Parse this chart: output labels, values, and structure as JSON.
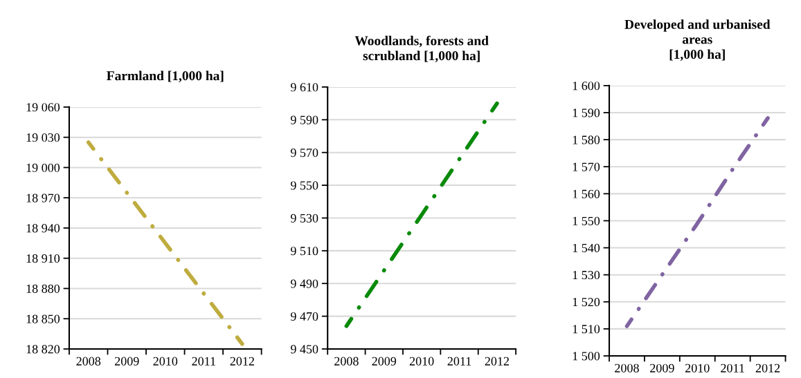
{
  "chart_data": [
    {
      "type": "line",
      "title": "Farmland [1,000 ha]",
      "categories": [
        "2008",
        "2009",
        "2010",
        "2011",
        "2012"
      ],
      "series": [
        {
          "color": "#bfac3f",
          "values": [
            19025,
            18975,
            18925,
            18875,
            18825
          ]
        }
      ],
      "ylim": [
        18820,
        19060
      ],
      "yticks": [
        {
          "value": 18820,
          "label": "18 820"
        },
        {
          "value": 18850,
          "label": "18 850"
        },
        {
          "value": 18880,
          "label": "18 880"
        },
        {
          "value": 18910,
          "label": "18 910"
        },
        {
          "value": 18940,
          "label": "18 940"
        },
        {
          "value": 18970,
          "label": "18 970"
        },
        {
          "value": 19000,
          "label": "19 000"
        },
        {
          "value": 19030,
          "label": "19 030"
        },
        {
          "value": 19060,
          "label": "19 060"
        }
      ],
      "grid": "y",
      "marker": "none",
      "line_style": "dashdot"
    },
    {
      "type": "line",
      "title": "Woodlands, forests and\nscrubland [1,000 ha]",
      "categories": [
        "2008",
        "2009",
        "2010",
        "2011",
        "2012"
      ],
      "series": [
        {
          "color": "#0a8a0a",
          "values": [
            9464,
            9498,
            9532,
            9566,
            9600
          ]
        }
      ],
      "ylim": [
        9450,
        9610
      ],
      "yticks": [
        {
          "value": 9450,
          "label": "9 450"
        },
        {
          "value": 9470,
          "label": "9 470"
        },
        {
          "value": 9490,
          "label": "9 490"
        },
        {
          "value": 9510,
          "label": "9 510"
        },
        {
          "value": 9530,
          "label": "9 530"
        },
        {
          "value": 9550,
          "label": "9 550"
        },
        {
          "value": 9570,
          "label": "9 570"
        },
        {
          "value": 9590,
          "label": "9 590"
        },
        {
          "value": 9610,
          "label": "9 610"
        }
      ],
      "grid": "y",
      "marker": "none",
      "line_style": "dashdot"
    },
    {
      "type": "line",
      "title": "Developed and urbanised\nareas\n[1,000 ha]",
      "categories": [
        "2008",
        "2009",
        "2010",
        "2011",
        "2012"
      ],
      "series": [
        {
          "color": "#8064a2",
          "values": [
            1511,
            1530,
            1549,
            1569,
            1588
          ]
        }
      ],
      "ylim": [
        1500,
        1600
      ],
      "yticks": [
        {
          "value": 1500,
          "label": "1 500"
        },
        {
          "value": 1510,
          "label": "1 510"
        },
        {
          "value": 1520,
          "label": "1 520"
        },
        {
          "value": 1530,
          "label": "1 530"
        },
        {
          "value": 1540,
          "label": "1 540"
        },
        {
          "value": 1550,
          "label": "1 550"
        },
        {
          "value": 1560,
          "label": "1 560"
        },
        {
          "value": 1570,
          "label": "1 570"
        },
        {
          "value": 1580,
          "label": "1 580"
        },
        {
          "value": 1590,
          "label": "1 590"
        },
        {
          "value": 1600,
          "label": "1 600"
        }
      ],
      "grid": "y",
      "marker": "none",
      "line_style": "dashdot"
    }
  ]
}
